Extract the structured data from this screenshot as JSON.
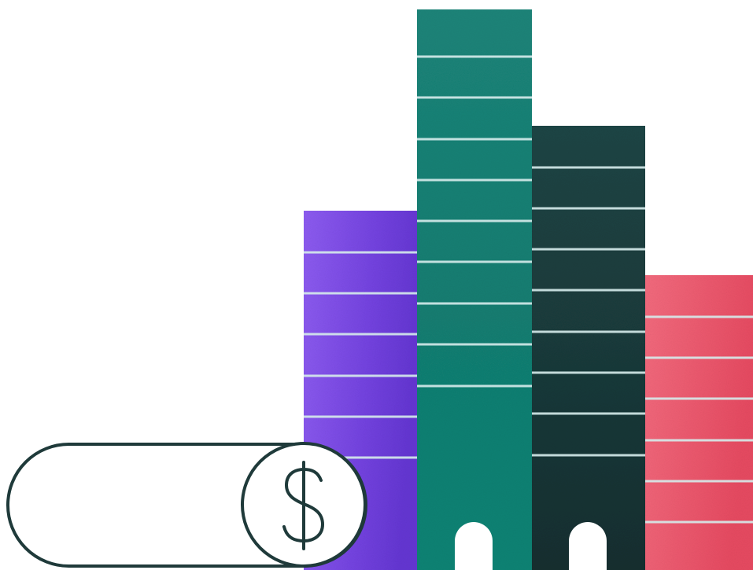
{
  "illustration": {
    "coin_symbol": "$",
    "colors": {
      "background": "#ffffff",
      "purple_bar": "#7b45e6",
      "teal_bar": "#127f73",
      "dark_bar": "#183737",
      "pink_bar": "#ef5a6f",
      "stripe": "#d6ecec",
      "outline": "#1f3a3a"
    },
    "icons": [
      "dollar-coin-icon",
      "toggle-pill-icon"
    ]
  }
}
